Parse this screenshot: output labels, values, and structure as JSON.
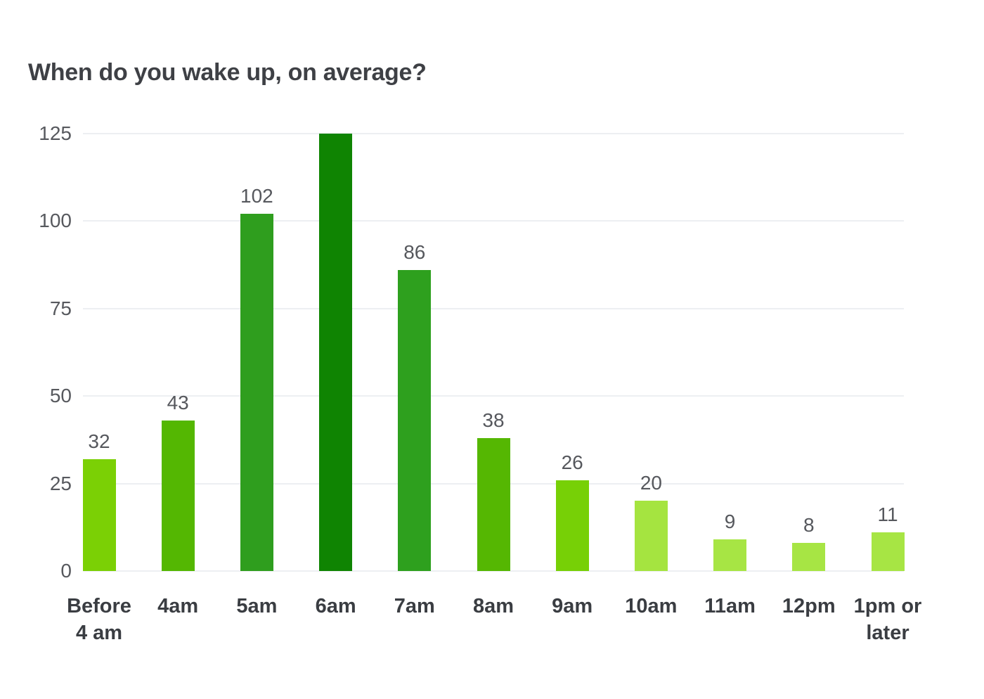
{
  "chart_data": {
    "type": "bar",
    "title": "When do you wake up, on average?",
    "categories": [
      "Before\n4 am",
      "4am",
      "5am",
      "6am",
      "7am",
      "8am",
      "9am",
      "10am",
      "11am",
      "12pm",
      "1pm or\nlater"
    ],
    "values": [
      32,
      43,
      102,
      125,
      86,
      38,
      26,
      20,
      9,
      8,
      11
    ],
    "data_labels": [
      "32",
      "43",
      "102",
      "",
      "86",
      "38",
      "26",
      "20",
      "9",
      "8",
      "11"
    ],
    "bar_colors": [
      "#7bd005",
      "#54b702",
      "#2f9e1e",
      "#0f8402",
      "#2ea01e",
      "#55b702",
      "#77d006",
      "#a5e440",
      "#a7e544",
      "#a7e544",
      "#a7e544"
    ],
    "y_ticks": [
      "0",
      "25",
      "50",
      "75",
      "100",
      "125"
    ],
    "ylim": [
      0,
      125
    ],
    "xlabel": "",
    "ylabel": "",
    "grid": true,
    "legend": false
  },
  "colors": {
    "background": "#ffffff",
    "title_text": "#3e4045",
    "axis_tick_text": "#57595e",
    "data_label_text": "#56585d",
    "x_label_text": "#3a3d42",
    "gridline": "#edeff2"
  }
}
